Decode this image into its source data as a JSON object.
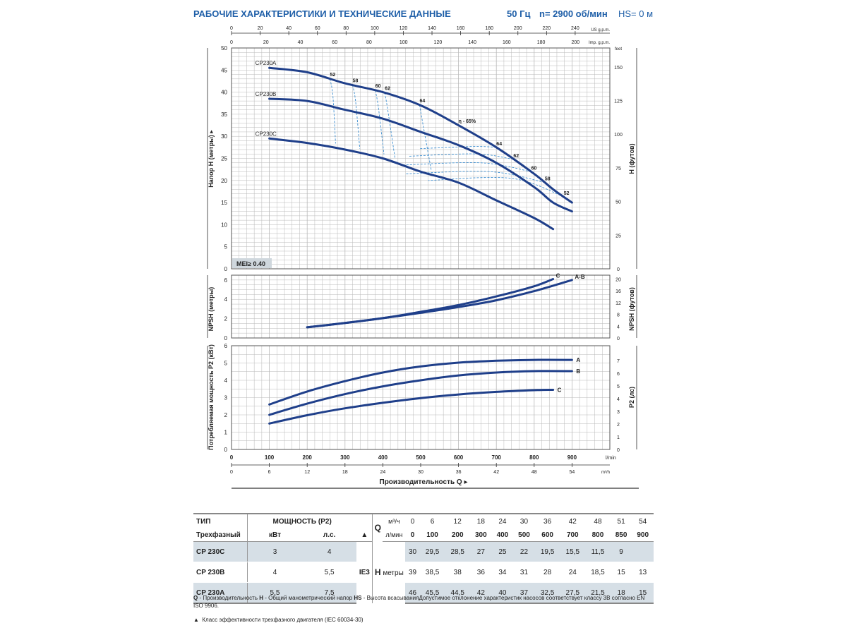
{
  "header": {
    "title": "РАБОЧИЕ ХАРАКТЕРИСТИКИ И ТЕХНИЧЕСКИЕ ДАННЫЕ",
    "freq": "50 Гц",
    "speed": "n= 2900 об/мин",
    "hs": "HS= 0 м"
  },
  "colors": {
    "accent": "#1f5fa8",
    "curve": "#1f3f8a",
    "eff": "#3f8fd0",
    "grid": "#b9b9b9",
    "shade": "#d6dfe6"
  },
  "chart_data": [
    {
      "type": "line",
      "name": "head",
      "ylabel": "Напор H (метры)",
      "y2label": "H (футов)",
      "ylim": [
        0,
        50
      ],
      "yticks": [
        0,
        5,
        10,
        15,
        20,
        25,
        30,
        35,
        40,
        45,
        50
      ],
      "y2unit": "feet",
      "y2ticks": [
        0,
        25,
        50,
        75,
        100,
        125,
        150
      ],
      "xlim": [
        0,
        1000
      ],
      "series": [
        {
          "name": "CP230A",
          "x": [
            100,
            200,
            300,
            400,
            500,
            600,
            700,
            800,
            850,
            900
          ],
          "y": [
            45.5,
            44.5,
            42,
            40,
            37,
            32.5,
            27.5,
            21.5,
            18,
            15
          ]
        },
        {
          "name": "CP230B",
          "x": [
            100,
            200,
            300,
            400,
            500,
            600,
            700,
            800,
            850,
            900
          ],
          "y": [
            38.5,
            38,
            36,
            34,
            31,
            28,
            24,
            18.5,
            15,
            13
          ]
        },
        {
          "name": "CP230C",
          "x": [
            100,
            200,
            300,
            400,
            500,
            600,
            700,
            800,
            850
          ],
          "y": [
            29.5,
            28.5,
            27,
            25,
            22,
            19.5,
            15.5,
            11.5,
            9
          ]
        }
      ],
      "efficiency": {
        "label": "η - 65%",
        "left_labels": [
          {
            "text": "52",
            "x": 260
          },
          {
            "text": "58",
            "x": 320
          },
          {
            "text": "60",
            "x": 380
          },
          {
            "text": "62",
            "x": 405
          },
          {
            "text": "64",
            "x": 497
          }
        ],
        "right_labels": [
          {
            "text": "64",
            "x": 700
          },
          {
            "text": "62",
            "x": 745
          },
          {
            "text": "60",
            "x": 792
          },
          {
            "text": "58",
            "x": 828
          },
          {
            "text": "52",
            "x": 878
          }
        ]
      },
      "annotation": "MEI≥ 0.40"
    },
    {
      "type": "line",
      "name": "npsh",
      "ylabel": "NPSH (метры)",
      "y2label": "NPSH (футов)",
      "ylim": [
        0,
        6.5
      ],
      "yticks": [
        0,
        2,
        4,
        6
      ],
      "y2ticks": [
        0,
        4,
        8,
        12,
        16,
        20
      ],
      "series": [
        {
          "name": "A-B",
          "x": [
            200,
            300,
            400,
            500,
            600,
            700,
            800,
            900
          ],
          "y": [
            1.1,
            1.55,
            2.05,
            2.6,
            3.2,
            3.9,
            4.85,
            6.0
          ]
        },
        {
          "name": "C",
          "x": [
            200,
            300,
            400,
            500,
            600,
            700,
            800,
            850
          ],
          "y": [
            1.1,
            1.55,
            2.05,
            2.7,
            3.4,
            4.3,
            5.35,
            6.1
          ]
        }
      ]
    },
    {
      "type": "line",
      "name": "power",
      "ylabel": "Потребляемая мощность P2 (кВт)",
      "y2label": "P2 (лс)",
      "ylim": [
        0,
        6
      ],
      "yticks": [
        0,
        1,
        2,
        3,
        4,
        5,
        6
      ],
      "y2ticks": [
        0,
        1,
        2,
        3,
        4,
        5,
        6,
        7
      ],
      "series": [
        {
          "name": "A",
          "x": [
            100,
            200,
            300,
            400,
            500,
            600,
            700,
            800,
            900
          ],
          "y": [
            2.6,
            3.35,
            3.95,
            4.45,
            4.8,
            5.02,
            5.13,
            5.18,
            5.18
          ]
        },
        {
          "name": "B",
          "x": [
            100,
            200,
            300,
            400,
            500,
            600,
            700,
            800,
            900
          ],
          "y": [
            2.0,
            2.65,
            3.2,
            3.65,
            4.0,
            4.28,
            4.45,
            4.53,
            4.53
          ]
        },
        {
          "name": "C",
          "x": [
            100,
            200,
            300,
            400,
            500,
            600,
            700,
            800,
            850
          ],
          "y": [
            1.5,
            1.98,
            2.38,
            2.7,
            2.97,
            3.18,
            3.33,
            3.43,
            3.45
          ]
        }
      ]
    }
  ],
  "axes": {
    "usgpm_unit": "US g.p.m.",
    "usgpm_ticks": [
      "0",
      "20",
      "40",
      "60",
      "80",
      "100",
      "120",
      "140",
      "160",
      "180",
      "200",
      "220",
      "240"
    ],
    "impgpm_unit": "Imp. g.p.m.",
    "impgpm_ticks": [
      "0",
      "20",
      "40",
      "60",
      "80",
      "100",
      "120",
      "140",
      "160",
      "180",
      "200"
    ],
    "lmin_unit": "l/min",
    "lmin_ticks": [
      "0",
      "100",
      "200",
      "300",
      "400",
      "500",
      "600",
      "700",
      "800",
      "900"
    ],
    "m3h_unit": "m³/h",
    "m3h_ticks": [
      "0",
      "6",
      "12",
      "18",
      "24",
      "30",
      "36",
      "42",
      "48",
      "54"
    ],
    "xlabel": "Производительность Q"
  },
  "table": {
    "type_header": "ТИП",
    "type_sub": "Трехфазный",
    "power_header": "МОЩНОСТЬ (P2)",
    "kw_header": "кВт",
    "hp_header": "л.с.",
    "triangle": "▲",
    "q_label": "Q",
    "q_unit1": "м³/ч",
    "q_unit2": "л/мин",
    "q_m3h": [
      "0",
      "6",
      "12",
      "18",
      "24",
      "30",
      "36",
      "42",
      "48",
      "51",
      "54"
    ],
    "q_lmin": [
      "0",
      "100",
      "200",
      "300",
      "400",
      "500",
      "600",
      "700",
      "800",
      "850",
      "900"
    ],
    "h_label": "H",
    "h_unit": "метры",
    "ie": "IE3",
    "rows": [
      {
        "type": "CP 230C",
        "kw": "3",
        "hp": "4",
        "h": [
          "30",
          "29,5",
          "28,5",
          "27",
          "25",
          "22",
          "19,5",
          "15,5",
          "11,5",
          "9",
          ""
        ]
      },
      {
        "type": "CP 230B",
        "kw": "4",
        "hp": "5,5",
        "h": [
          "39",
          "38,5",
          "38",
          "36",
          "34",
          "31",
          "28",
          "24",
          "18,5",
          "15",
          "13"
        ]
      },
      {
        "type": "CP 230A",
        "kw": "5,5",
        "hp": "7,5",
        "h": [
          "46",
          "45,5",
          "44,5",
          "42",
          "40",
          "37",
          "32,5",
          "27,5",
          "21,5",
          "18",
          "15"
        ]
      }
    ]
  },
  "notes": {
    "line1_q": "Q",
    "line1_qt": " - Производительность   ",
    "line1_h": "H",
    "line1_ht": " - Общий манометрический напор   ",
    "line1_hs": "HS",
    "line1_hst": " - Высота всасыванияДопустимое отклонение характеристик насосов соответствует классу 3В согласно EN ISO 9906.",
    "line2_sym": "▲",
    "line2": "Класс эффективности трехфазного двигателя (IEC 60034-30)"
  }
}
